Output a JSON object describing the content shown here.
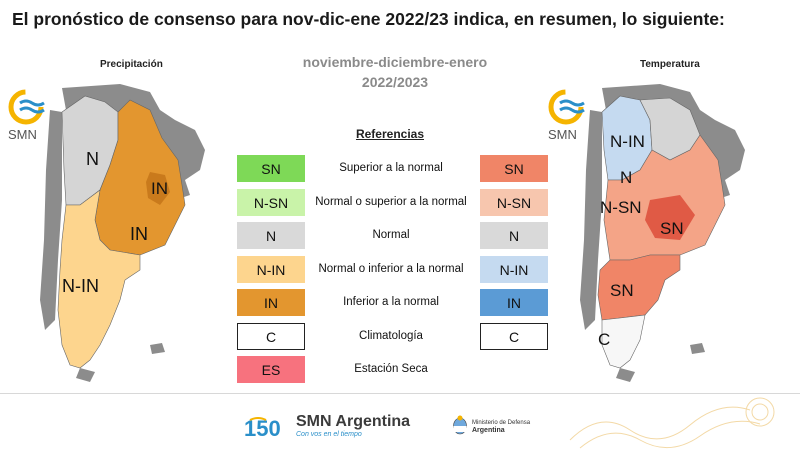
{
  "header": {
    "title": "El pronóstico de consenso para  nov-dic-ene 2022/23 indica, en resumen, lo siguiente:"
  },
  "center": {
    "period_line1": "noviembre-diciembre-enero",
    "period_line2": "2022/2023",
    "references_title": "Referencias"
  },
  "precipitation_map": {
    "label": "Precipitación",
    "logo_text": "SMN",
    "regions": [
      "N",
      "IN",
      "IN",
      "N-IN"
    ]
  },
  "temperature_map": {
    "label": "Temperatura",
    "logo_text": "SMN",
    "regions": [
      "N-IN",
      "N",
      "N-SN",
      "SN",
      "SN",
      "C"
    ]
  },
  "legend": {
    "rows": [
      {
        "left_code": "SN",
        "left_color": "#7ed957",
        "label": "Superior a la normal",
        "right_code": "SN",
        "right_color": "#f08567"
      },
      {
        "left_code": "N-SN",
        "left_color": "#c9f3a9",
        "label": "Normal o superior a la normal",
        "right_code": "N-SN",
        "right_color": "#f7c6ae"
      },
      {
        "left_code": "N",
        "left_color": "#d9d9d9",
        "label": "Normal",
        "right_code": "N",
        "right_color": "#d9d9d9"
      },
      {
        "left_code": "N-IN",
        "left_color": "#fdd58e",
        "label": "Normal o inferior a la normal",
        "right_code": "N-IN",
        "right_color": "#c5daf0"
      },
      {
        "left_code": "IN",
        "left_color": "#e3962f",
        "label": "Inferior a la normal",
        "right_code": "IN",
        "right_color": "#5b9bd5"
      },
      {
        "left_code": "C",
        "left_color": "#ffffff",
        "label": "Climatología",
        "right_code": "C",
        "right_color": "#ffffff"
      },
      {
        "left_code": "ES",
        "left_color": "#f7727e",
        "label": "Estación Seca"
      }
    ]
  },
  "footer": {
    "brand": "SMN Argentina",
    "anniversary": "150",
    "tagline": "Con vos en el tiempo",
    "ministry_line1": "Ministerio de Defensa",
    "ministry_line2": "Argentina"
  },
  "colors": {
    "precip_normal": "#d5d5d5",
    "precip_below": "#e3962f",
    "precip_normal_below": "#fdd58e",
    "temp_normal_above": "#f4a487",
    "temp_above": "#f08567",
    "temp_above_strong": "#e05a45",
    "temp_normal_below": "#c5daf0",
    "temp_normal": "#d5d5d5",
    "land_outside": "#8c8c8c"
  }
}
